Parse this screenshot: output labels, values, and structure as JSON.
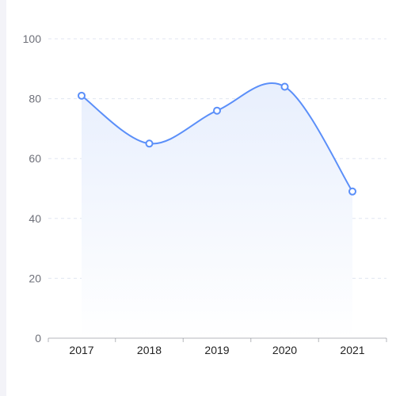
{
  "chart_data": {
    "type": "line",
    "smooth": true,
    "area_fill": true,
    "categories": [
      "2017",
      "2018",
      "2019",
      "2020",
      "2021"
    ],
    "series": [
      {
        "values": [
          81,
          65,
          76,
          84,
          49
        ]
      }
    ],
    "ylim": [
      0,
      100
    ],
    "yticks": [
      0,
      20,
      40,
      60,
      80,
      100
    ],
    "grid": "horizontal-dashed",
    "legend": "none"
  },
  "colors": {
    "line": "#5b8ff9",
    "area_top": "#e8effd",
    "grid": "#e0e6f1",
    "axis": "#6e7079",
    "rail": "#f3f3f8"
  }
}
